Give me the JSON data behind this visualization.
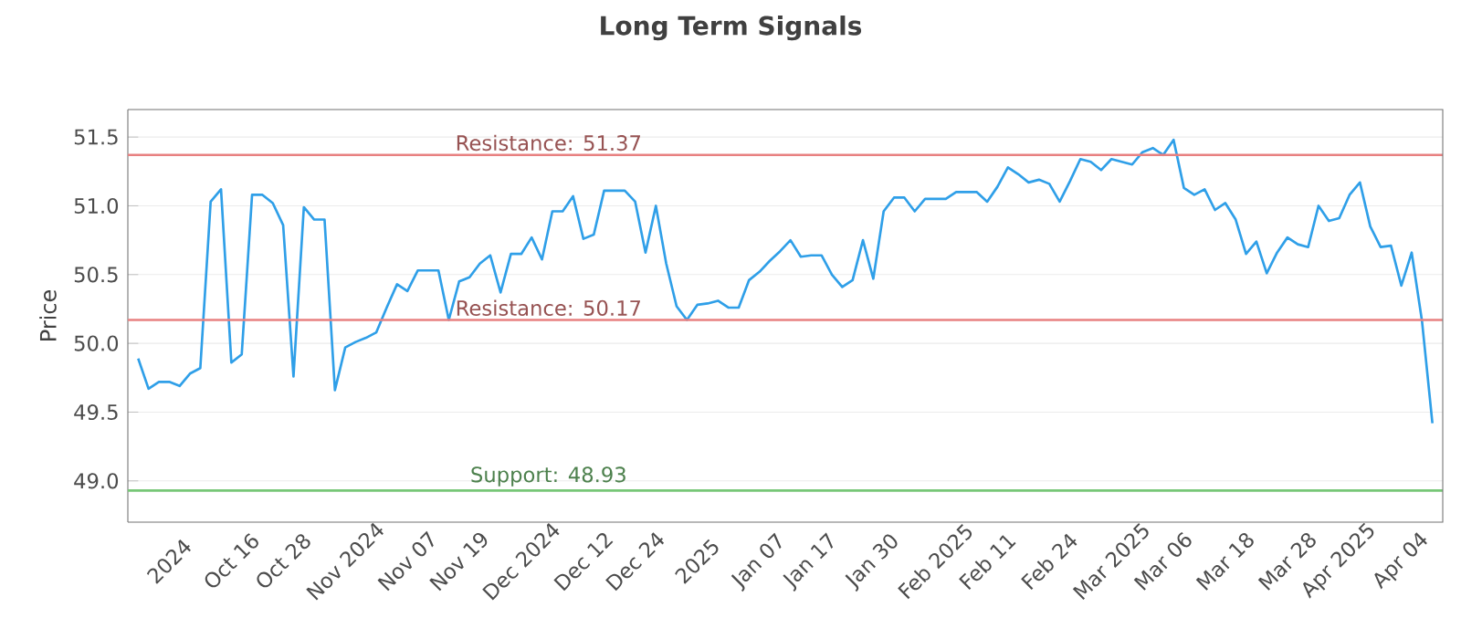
{
  "chart_data": {
    "type": "line",
    "title": "Long Term Signals",
    "ylabel": "Price",
    "categories": [
      null,
      null,
      null,
      "2024",
      null,
      null,
      null,
      null,
      null,
      "Oct 16",
      null,
      null,
      null,
      null,
      "Oct 28",
      null,
      null,
      null,
      null,
      null,
      "Nov 2024",
      null,
      null,
      null,
      null,
      null,
      "Nov 07",
      null,
      null,
      null,
      null,
      "Nov 19",
      null,
      null,
      null,
      null,
      null,
      "Dec 2024",
      null,
      null,
      null,
      null,
      null,
      "Dec 12",
      null,
      null,
      null,
      null,
      "Dec 24",
      null,
      null,
      null,
      null,
      null,
      "2025",
      null,
      null,
      null,
      null,
      null,
      "Jan 07",
      null,
      null,
      null,
      null,
      "Jan 17",
      null,
      null,
      null,
      null,
      null,
      "Jan 30",
      null,
      null,
      null,
      null,
      null,
      "Feb 2025",
      null,
      null,
      null,
      null,
      "Feb 11",
      null,
      null,
      null,
      null,
      null,
      "Feb 24",
      null,
      null,
      null,
      null,
      null,
      "Mar 2025",
      null,
      null,
      null,
      null,
      "Mar 06",
      null,
      null,
      null,
      null,
      null,
      "Mar 18",
      null,
      null,
      null,
      null,
      null,
      "Mar 28",
      null,
      null,
      null,
      null,
      "Apr 2025",
      null,
      null,
      null,
      null,
      null,
      "Apr 04",
      null,
      null,
      null
    ],
    "series": [
      {
        "color": "#2f9fe8",
        "values": [
          49.89,
          49.67,
          49.72,
          49.72,
          49.69,
          49.78,
          49.82,
          51.03,
          51.12,
          49.86,
          49.92,
          51.08,
          51.08,
          51.02,
          50.86,
          49.76,
          50.99,
          50.9,
          50.9,
          49.66,
          49.97,
          50.01,
          50.04,
          50.08,
          50.26,
          50.43,
          50.38,
          50.53,
          50.53,
          50.53,
          50.17,
          50.45,
          50.48,
          50.58,
          50.64,
          50.37,
          50.65,
          50.65,
          50.77,
          50.61,
          50.96,
          50.96,
          51.07,
          50.76,
          50.79,
          51.11,
          51.11,
          51.11,
          51.03,
          50.66,
          51.0,
          50.58,
          50.27,
          50.17,
          50.28,
          50.29,
          50.31,
          50.26,
          50.26,
          50.46,
          50.52,
          50.6,
          50.67,
          50.75,
          50.63,
          50.64,
          50.64,
          50.5,
          50.41,
          50.46,
          50.75,
          50.47,
          50.96,
          51.06,
          51.06,
          50.96,
          51.05,
          51.05,
          51.05,
          51.1,
          51.1,
          51.1,
          51.03,
          51.14,
          51.28,
          51.23,
          51.17,
          51.19,
          51.16,
          51.03,
          51.18,
          51.34,
          51.32,
          51.26,
          51.34,
          51.32,
          51.3,
          51.39,
          51.42,
          51.37,
          51.48,
          51.13,
          51.08,
          51.12,
          50.97,
          51.02,
          50.9,
          50.65,
          50.74,
          50.51,
          50.66,
          50.77,
          50.72,
          50.7,
          51.0,
          50.89,
          50.91,
          51.08,
          51.17,
          50.85,
          50.7,
          50.71,
          50.42,
          50.66,
          50.16,
          49.42
        ]
      }
    ],
    "ylim": [
      48.7,
      51.7
    ],
    "yticks": [
      {
        "value": 49.0,
        "label": "49.0"
      },
      49.5,
      {
        "value": 50.0,
        "label": "50.0"
      },
      50.5,
      {
        "value": 51.0,
        "label": "51.0"
      },
      51.5
    ],
    "grid": "y",
    "ref_lines": [
      {
        "axis": "y",
        "value": 51.37,
        "label": "Resistance: 51.37",
        "color": "#e88080"
      },
      {
        "axis": "y",
        "value": 50.17,
        "label": "Resistance: 50.17",
        "color": "#e88080"
      },
      {
        "axis": "y",
        "value": 48.93,
        "label": "Support: 48.93",
        "color": "#77c777"
      }
    ]
  }
}
